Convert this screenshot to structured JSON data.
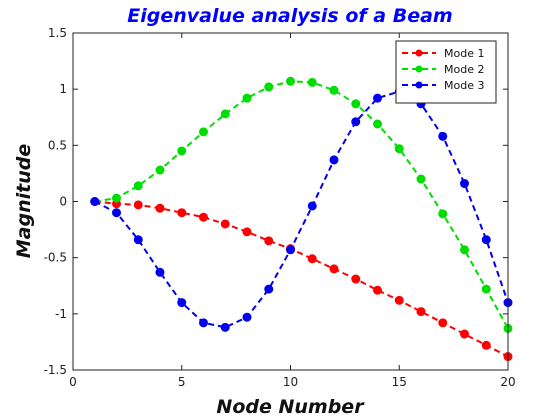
{
  "chart_data": {
    "type": "line",
    "title": "Eigenvalue analysis of a Beam",
    "xlabel": "Node Number",
    "ylabel": "Magnitude",
    "xlim": [
      0,
      20
    ],
    "ylim": [
      -1.5,
      1.5
    ],
    "xticks": [
      "0",
      "5",
      "10",
      "15",
      "20"
    ],
    "yticks": [
      "-1.5",
      "-1",
      "-0.5",
      "0",
      "0.5",
      "1",
      "1.5"
    ],
    "xtick_values": [
      0,
      5,
      10,
      15,
      20
    ],
    "ytick_values": [
      -1.5,
      -1,
      -0.5,
      0,
      0.5,
      1,
      1.5
    ],
    "grid": false,
    "legend_position": "top-right",
    "line_style": "dashed with circle markers",
    "x": [
      1,
      2,
      3,
      4,
      5,
      6,
      7,
      8,
      9,
      10,
      11,
      12,
      13,
      14,
      15,
      16,
      17,
      18,
      19,
      20
    ],
    "series": [
      {
        "name": "Mode 1",
        "color": "#ff0000",
        "values": [
          0,
          -0.02,
          -0.03,
          -0.06,
          -0.1,
          -0.14,
          -0.2,
          -0.27,
          -0.35,
          -0.42,
          -0.51,
          -0.6,
          -0.69,
          -0.79,
          -0.88,
          -0.98,
          -1.08,
          -1.18,
          -1.28,
          -1.38
        ]
      },
      {
        "name": "Mode 2",
        "color": "#00dd00",
        "values": [
          0,
          0.03,
          0.14,
          0.28,
          0.45,
          0.62,
          0.78,
          0.92,
          1.02,
          1.07,
          1.06,
          0.99,
          0.87,
          0.69,
          0.47,
          0.2,
          -0.11,
          -0.43,
          -0.78,
          -1.13
        ]
      },
      {
        "name": "Mode 3",
        "color": "#0000ee",
        "values": [
          0,
          -0.1,
          -0.34,
          -0.63,
          -0.9,
          -1.08,
          -1.12,
          -1.03,
          -0.78,
          -0.43,
          -0.04,
          0.37,
          0.71,
          0.92,
          0.98,
          0.87,
          0.58,
          0.16,
          -0.34,
          -0.9
        ]
      }
    ]
  }
}
